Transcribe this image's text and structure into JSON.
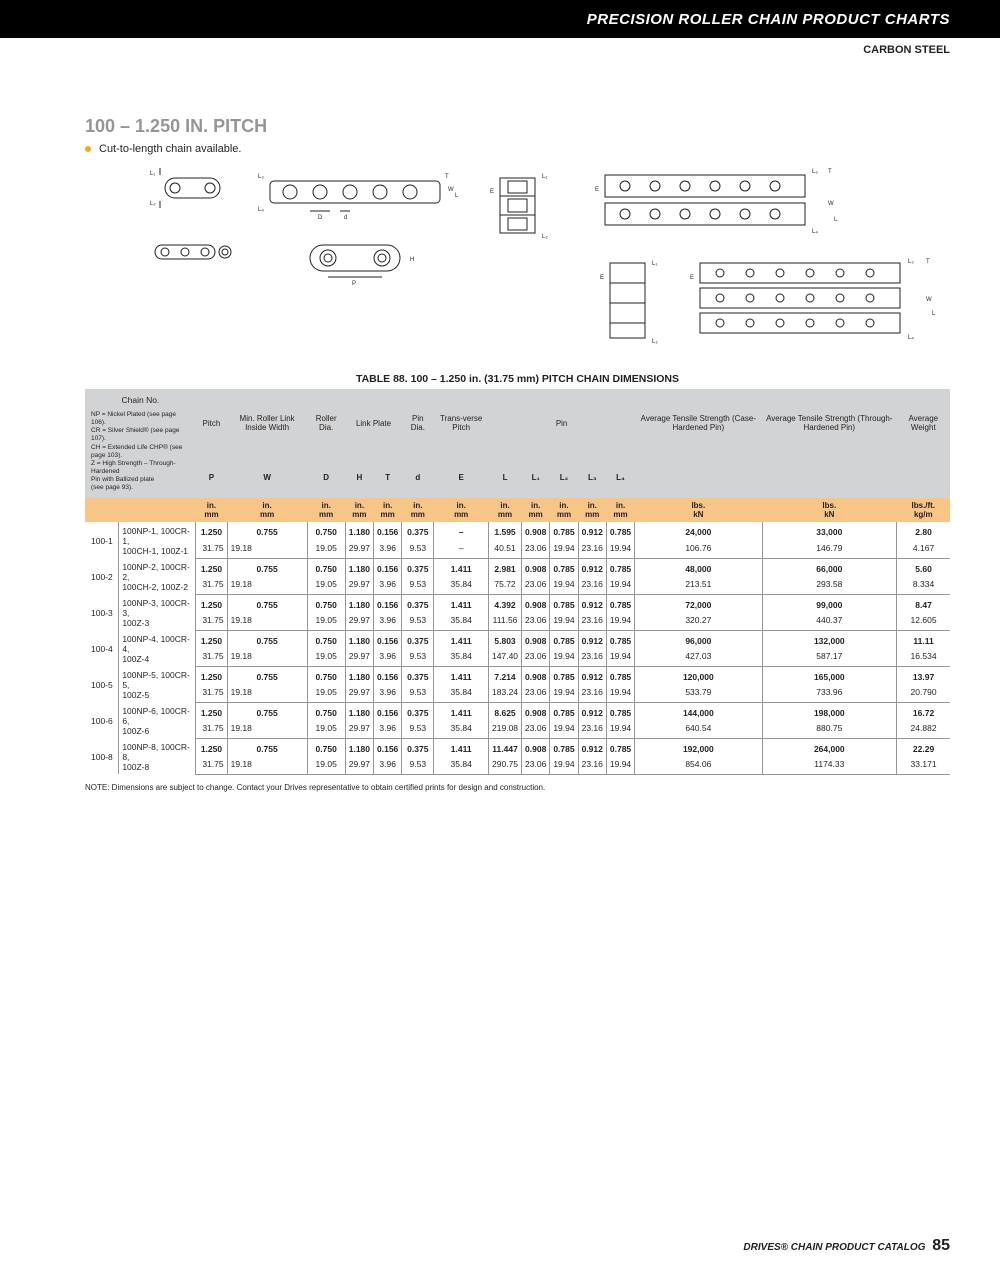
{
  "header": {
    "title": "PRECISION ROLLER CHAIN PRODUCT CHARTS",
    "sub": "CARBON STEEL"
  },
  "section": {
    "title": "100 – 1.250 IN. PITCH",
    "bullet": "Cut-to-length chain available."
  },
  "table": {
    "caption": "TABLE 88. 100 – 1.250 in. (31.75 mm) PITCH CHAIN DIMENSIONS",
    "chain_legend_title": "Chain No.",
    "chain_legend": [
      "NP = Nickel Plated (see page 106).",
      "CR = Silver Shield® (see page 107).",
      "CH = Extended Life CHP® (see page 103).",
      "Z = High Strength – Through-Hardened",
      "      Pin with Ballized plate",
      "      (see page 93)."
    ],
    "group_headers": [
      "Pitch",
      "Min. Roller Link Inside Width",
      "Roller Dia.",
      "Link Plate",
      "",
      "Pin Dia.",
      "Trans-verse Pitch",
      "Pin",
      "",
      "",
      "",
      "",
      "Average Tensile Strength (Case-Hardened Pin)",
      "Average Tensile Strength (Through-Hardened Pin)",
      "Average Weight"
    ],
    "sym_row": [
      "P",
      "W",
      "D",
      "H",
      "T",
      "d",
      "E",
      "L",
      "L₁",
      "L₂",
      "L₃",
      "L₄",
      "",
      "",
      ""
    ],
    "unit_top": [
      "in.",
      "in.",
      "in.",
      "in.",
      "in.",
      "in.",
      "in.",
      "in.",
      "in.",
      "in.",
      "in.",
      "in.",
      "lbs.",
      "lbs.",
      "lbs./ft."
    ],
    "unit_bot": [
      "mm",
      "mm",
      "mm",
      "mm",
      "mm",
      "mm",
      "mm",
      "mm",
      "mm",
      "mm",
      "mm",
      "mm",
      "kN",
      "kN",
      "kg/m"
    ],
    "rows": [
      {
        "id": "100-1",
        "alt": [
          "100NP-1, 100CR-1,",
          "100CH-1, 100Z-1"
        ],
        "top": [
          "1.250",
          "0.755",
          "0.750",
          "1.180",
          "0.156",
          "0.375",
          "–",
          "1.595",
          "0.908",
          "0.785",
          "0.912",
          "0.785",
          "24,000",
          "33,000",
          "2.80"
        ],
        "bot": [
          "31.75",
          "19.18",
          "19.05",
          "29.97",
          "3.96",
          "9.53",
          "–",
          "40.51",
          "23.06",
          "19.94",
          "23.16",
          "19.94",
          "106.76",
          "146.79",
          "4.167"
        ]
      },
      {
        "id": "100-2",
        "alt": [
          "100NP-2, 100CR-2,",
          "100CH-2, 100Z-2"
        ],
        "top": [
          "1.250",
          "0.755",
          "0.750",
          "1.180",
          "0.156",
          "0.375",
          "1.411",
          "2.981",
          "0.908",
          "0.785",
          "0.912",
          "0.785",
          "48,000",
          "66,000",
          "5.60"
        ],
        "bot": [
          "31.75",
          "19.18",
          "19.05",
          "29.97",
          "3.96",
          "9.53",
          "35.84",
          "75.72",
          "23.06",
          "19.94",
          "23.16",
          "19.94",
          "213.51",
          "293.58",
          "8.334"
        ]
      },
      {
        "id": "100-3",
        "alt": [
          "100NP-3, 100CR-3,",
          "100Z-3"
        ],
        "top": [
          "1.250",
          "0.755",
          "0.750",
          "1.180",
          "0.156",
          "0.375",
          "1.411",
          "4.392",
          "0.908",
          "0.785",
          "0.912",
          "0.785",
          "72,000",
          "99,000",
          "8.47"
        ],
        "bot": [
          "31.75",
          "19.18",
          "19.05",
          "29.97",
          "3.96",
          "9.53",
          "35.84",
          "111.56",
          "23.06",
          "19.94",
          "23.16",
          "19.94",
          "320.27",
          "440.37",
          "12.605"
        ]
      },
      {
        "id": "100-4",
        "alt": [
          "100NP-4, 100CR-4,",
          "100Z-4"
        ],
        "top": [
          "1.250",
          "0.755",
          "0.750",
          "1.180",
          "0.156",
          "0.375",
          "1.411",
          "5.803",
          "0.908",
          "0.785",
          "0.912",
          "0.785",
          "96,000",
          "132,000",
          "11.11"
        ],
        "bot": [
          "31.75",
          "19.18",
          "19.05",
          "29.97",
          "3.96",
          "9.53",
          "35.84",
          "147.40",
          "23.06",
          "19.94",
          "23.16",
          "19.94",
          "427.03",
          "587.17",
          "16.534"
        ]
      },
      {
        "id": "100-5",
        "alt": [
          "100NP-5, 100CR-5,",
          "100Z-5"
        ],
        "top": [
          "1.250",
          "0.755",
          "0.750",
          "1.180",
          "0.156",
          "0.375",
          "1.411",
          "7.214",
          "0.908",
          "0.785",
          "0.912",
          "0.785",
          "120,000",
          "165,000",
          "13.97"
        ],
        "bot": [
          "31.75",
          "19.18",
          "19.05",
          "29.97",
          "3.96",
          "9.53",
          "35.84",
          "183.24",
          "23.06",
          "19.94",
          "23.16",
          "19.94",
          "533.79",
          "733.96",
          "20.790"
        ]
      },
      {
        "id": "100-6",
        "alt": [
          "100NP-6, 100CR-6,",
          "100Z-6"
        ],
        "top": [
          "1.250",
          "0.755",
          "0.750",
          "1.180",
          "0.156",
          "0.375",
          "1.411",
          "8.625",
          "0.908",
          "0.785",
          "0.912",
          "0.785",
          "144,000",
          "198,000",
          "16.72"
        ],
        "bot": [
          "31.75",
          "19.18",
          "19.05",
          "29.97",
          "3.96",
          "9.53",
          "35.84",
          "219.08",
          "23.06",
          "19.94",
          "23.16",
          "19.94",
          "640.54",
          "880.75",
          "24.882"
        ]
      },
      {
        "id": "100-8",
        "alt": [
          "100NP-8, 100CR-8,",
          "100Z-8"
        ],
        "top": [
          "1.250",
          "0.755",
          "0.750",
          "1.180",
          "0.156",
          "0.375",
          "1.411",
          "11.447",
          "0.908",
          "0.785",
          "0.912",
          "0.785",
          "192,000",
          "264,000",
          "22.29"
        ],
        "bot": [
          "31.75",
          "19.18",
          "19.05",
          "29.97",
          "3.96",
          "9.53",
          "35.84",
          "290.75",
          "23.06",
          "19.94",
          "23.16",
          "19.94",
          "854.06",
          "1174.33",
          "33.171"
        ]
      }
    ],
    "note": "NOTE: Dimensions are subject to change. Contact your Drives representative to obtain certified prints for design and construction."
  },
  "footer": {
    "catalog": "DRIVES® CHAIN PRODUCT CATALOG",
    "page": "85"
  },
  "colors": {
    "header_bg": "#000000",
    "accent": "#faa61a",
    "gray_title": "#939598",
    "hdr_bg": "#d1d3d4",
    "unit_bg": "#f7c686"
  }
}
